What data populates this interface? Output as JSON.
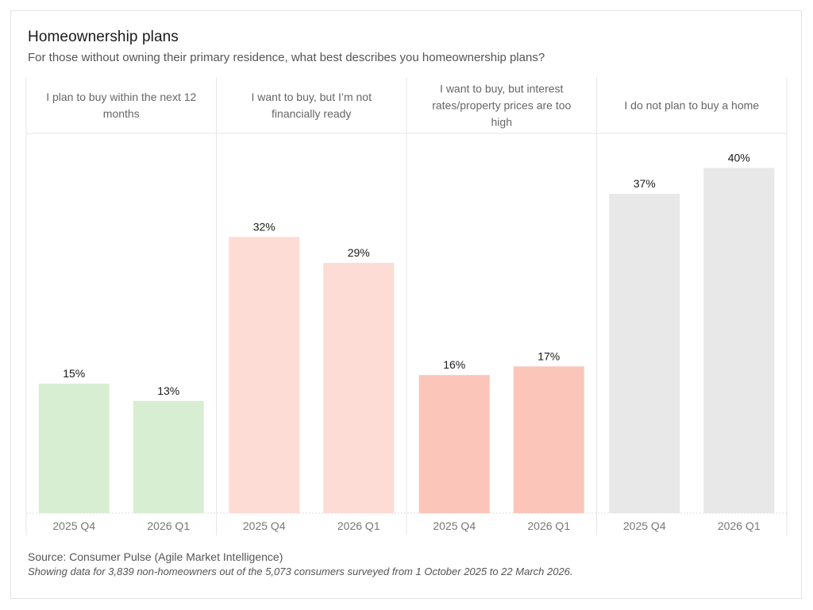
{
  "header": {
    "title": "Homeownership plans",
    "subtitle": "For those without owning their primary residence, what best describes you homeownership plans?"
  },
  "footer": {
    "source": "Source: Consumer Pulse (Agile Market Intelligence)",
    "note": "Showing data for 3,839 non-homeowners out of the 5,073 consumers surveyed from  1 October 2025 to 22 March 2026."
  },
  "chart_data": {
    "type": "bar",
    "title": "Homeownership plans",
    "subtitle": "For those without owning their primary residence, what best describes you homeownership plans?",
    "xlabel": "",
    "ylabel": "",
    "ylim": [
      0,
      44
    ],
    "grid": false,
    "legend": "none",
    "value_format": "percent",
    "x": [
      "2025 Q4",
      "2026 Q1"
    ],
    "panels": [
      {
        "name": "I plan to buy within the next 12 months",
        "header_lines": [
          "I plan to buy within the next 12",
          "months"
        ],
        "color": "#d8eed3",
        "values": [
          15,
          13
        ],
        "labels": [
          "15%",
          "13%"
        ]
      },
      {
        "name": "I want to buy, but I’m not financially ready",
        "header_lines": [
          "I want to buy, but I’m not",
          "financially ready"
        ],
        "color": "#fddcd6",
        "values": [
          32,
          29
        ],
        "labels": [
          "32%",
          "29%"
        ]
      },
      {
        "name": "I want to buy, but interest rates/property prices are too high",
        "header_lines": [
          "I want to buy, but interest",
          "rates/property prices are too",
          "high"
        ],
        "color": "#fbc5b9",
        "values": [
          16,
          17
        ],
        "labels": [
          "16%",
          "17%"
        ]
      },
      {
        "name": "I do not plan to buy a home",
        "header_lines": [
          "I do not plan to buy a home"
        ],
        "color": "#e8e8e8",
        "values": [
          37,
          40
        ],
        "labels": [
          "37%",
          "40%"
        ]
      }
    ]
  }
}
